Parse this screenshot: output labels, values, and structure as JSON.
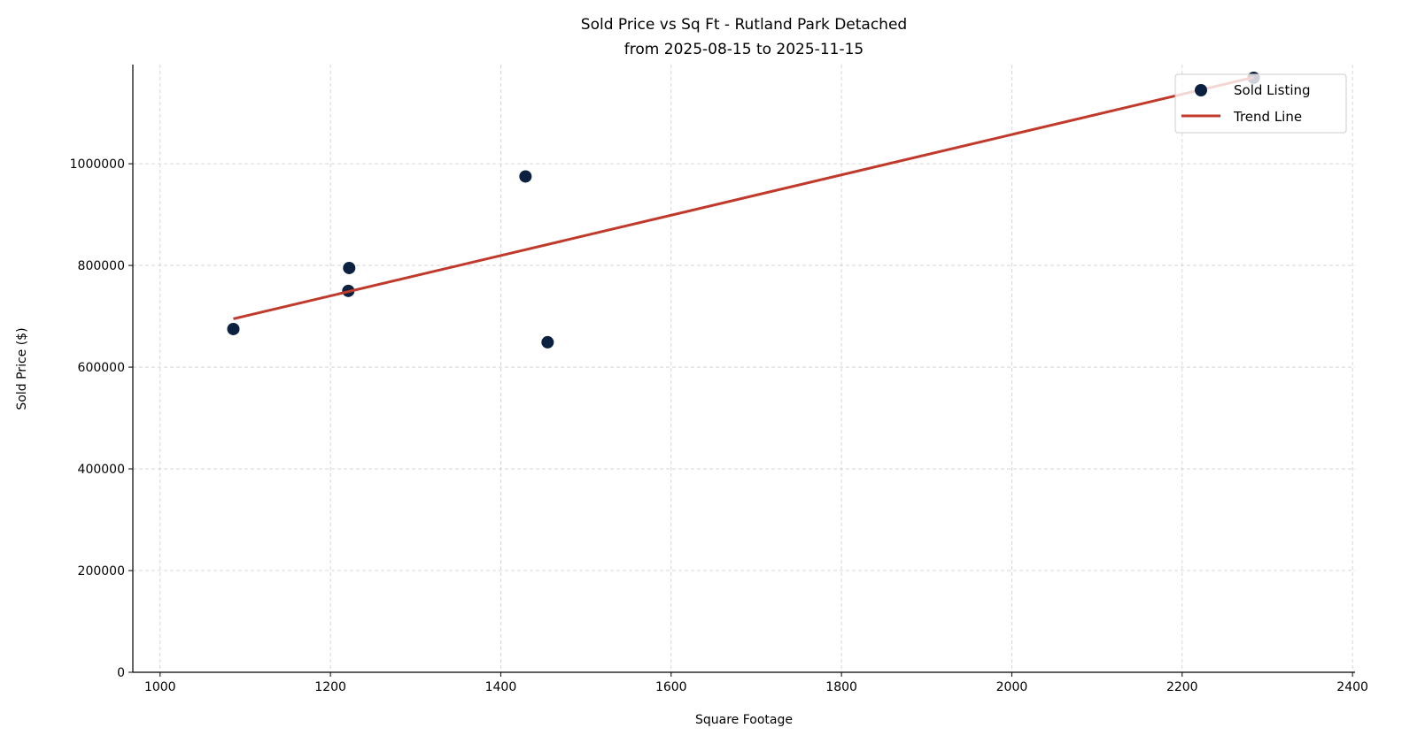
{
  "chart_data": {
    "type": "scatter",
    "title": "Sold Price vs Sq Ft - Rutland Park Detached",
    "subtitle": "from 2025-08-15 to 2025-11-15",
    "xlabel": "Square Footage",
    "ylabel": "Sold Price ($)",
    "xlim": [
      968,
      2403
    ],
    "ylim": [
      0,
      1195000
    ],
    "xticks": [
      1000,
      1200,
      1400,
      1600,
      1800,
      2000,
      2200,
      2400
    ],
    "yticks": [
      0,
      200000,
      400000,
      600000,
      800000,
      1000000
    ],
    "grid": true,
    "legend_placement": "top-right",
    "series": [
      {
        "name": "Sold Listing",
        "kind": "scatter",
        "color": "#0b213f",
        "points": [
          [
            1086,
            675000
          ],
          [
            1222,
            795000
          ],
          [
            1221,
            750000
          ],
          [
            1429,
            975000
          ],
          [
            1455,
            649000
          ],
          [
            2284,
            1169000
          ]
        ]
      },
      {
        "name": "Trend Line",
        "kind": "line",
        "color": "#c0392b",
        "points": [
          [
            1086,
            695000
          ],
          [
            2284,
            1170000
          ]
        ]
      }
    ]
  }
}
